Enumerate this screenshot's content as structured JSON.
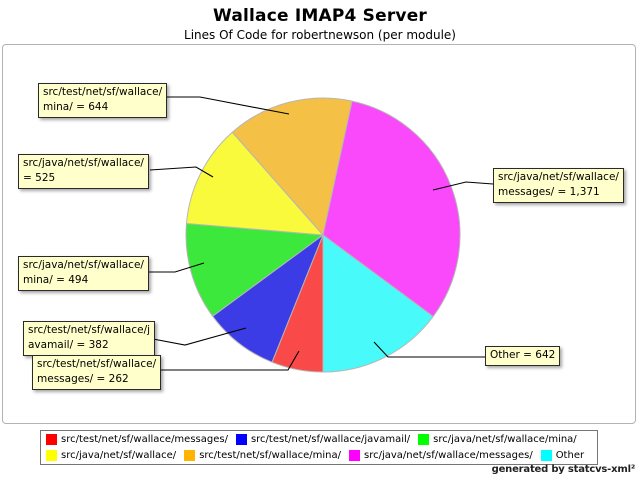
{
  "title": "Wallace IMAP4 Server",
  "subtitle": "Lines Of Code for robertnewson (per module)",
  "footer": "generated by statcvs-xml²",
  "chart_data": {
    "type": "pie",
    "title": "Wallace IMAP4 Server",
    "subtitle": "Lines Of Code for robertnewson (per module)",
    "total": 4320,
    "start_angle_deg_clockwise_from_top": 180,
    "direction": "clockwise",
    "legend_position": "bottom",
    "slices": [
      {
        "label": "src/test/net/sf/wallace/messages/",
        "value": 262,
        "color": "#FF0000",
        "pie_color": "#FA4949"
      },
      {
        "label": "src/test/net/sf/wallace/javamail/",
        "value": 382,
        "color": "#0000FF",
        "pie_color": "#3C3CE6"
      },
      {
        "label": "src/java/net/sf/wallace/mina/",
        "value": 494,
        "color": "#00FF00",
        "pie_color": "#3CE83C"
      },
      {
        "label": "src/java/net/sf/wallace/",
        "value": 525,
        "color": "#FFFF00",
        "pie_color": "#FAFA3C"
      },
      {
        "label": "src/test/net/sf/wallace/mina/",
        "value": 644,
        "color": "#FFB400",
        "pie_color": "#F5C046"
      },
      {
        "label": "src/java/net/sf/wallace/messages/",
        "value": 1371,
        "color": "#FF00FF",
        "pie_color": "#FA49FA"
      },
      {
        "label": "Other",
        "value": 642,
        "color": "#00FFFF",
        "pie_color": "#49FAFA"
      }
    ],
    "legend_rows": [
      [
        0,
        1,
        2
      ],
      [
        3,
        4,
        5,
        6
      ]
    ]
  },
  "callouts": [
    {
      "text": "src/test/net/sf/wallace/\nmina/ = 644"
    },
    {
      "text": "src/java/net/sf/wallace/\n= 525"
    },
    {
      "text": "src/java/net/sf/wallace/\nmina/ = 494"
    },
    {
      "text": "src/test/net/sf/wallace/j\navamail/ = 382"
    },
    {
      "text": "src/test/net/sf/wallace/\nmessages/ = 262"
    },
    {
      "text": "src/java/net/sf/wallace/\nmessages/ = 1,371"
    },
    {
      "text": "Other = 642"
    }
  ]
}
